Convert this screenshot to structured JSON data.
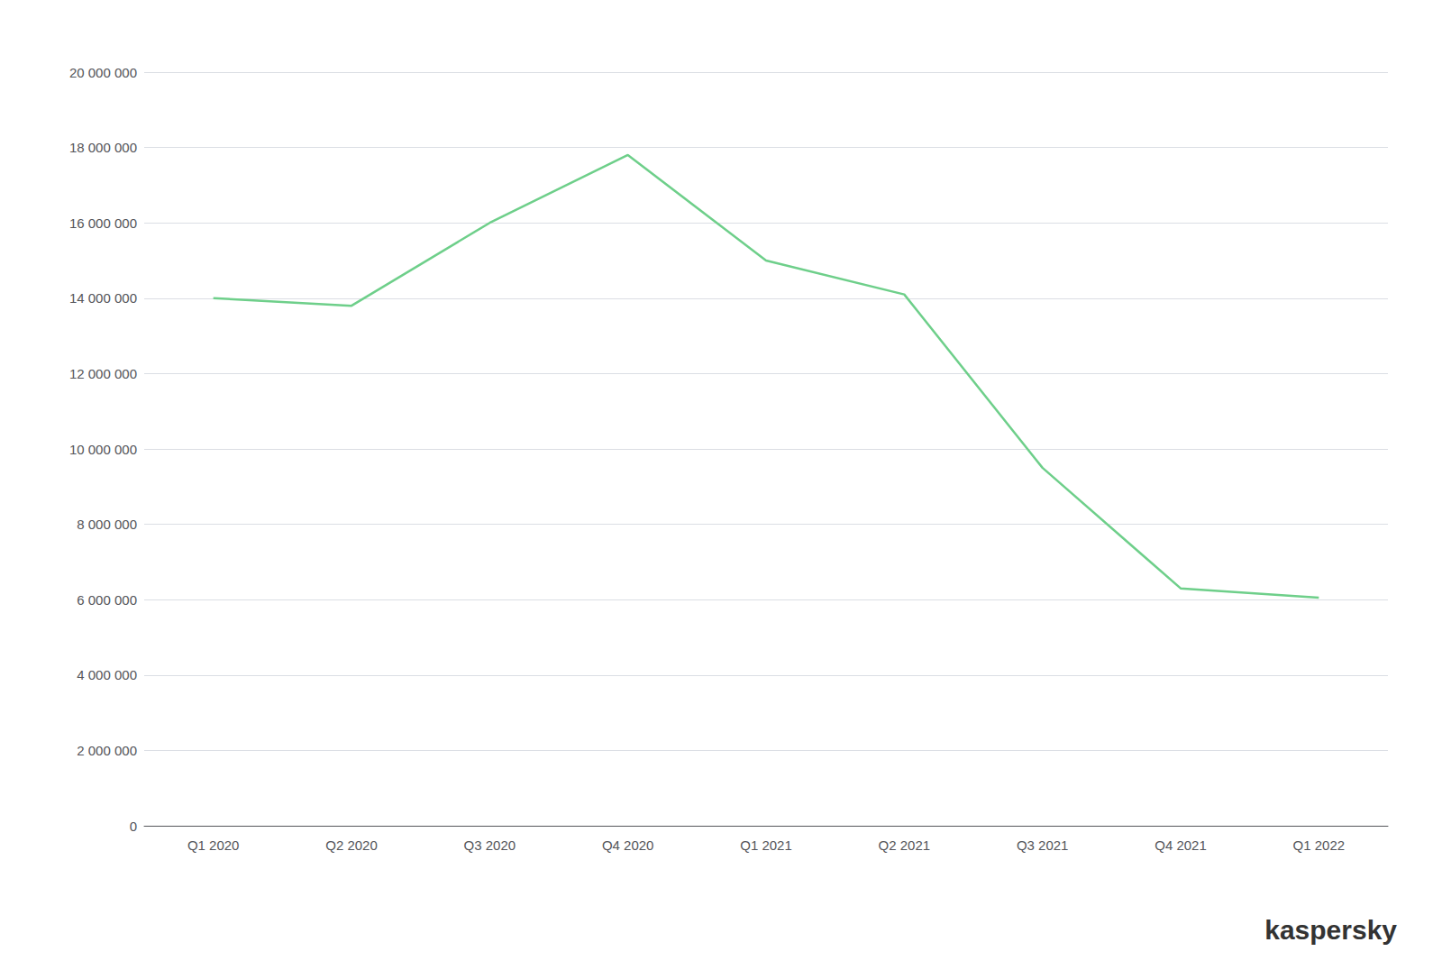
{
  "chart_data": {
    "type": "line",
    "categories": [
      "Q1 2020",
      "Q2 2020",
      "Q3 2020",
      "Q4 2020",
      "Q1 2021",
      "Q2 2021",
      "Q3 2021",
      "Q4 2021",
      "Q1 2022"
    ],
    "values": [
      14000000,
      13800000,
      16000000,
      17800000,
      15000000,
      14100000,
      9500000,
      6300000,
      6050000
    ],
    "color": "#6ecf8a",
    "ylim": [
      0,
      20000000
    ],
    "yticks": [
      0,
      {
        "value": 2000000,
        "label": "2 000 000"
      },
      {
        "value": 4000000,
        "label": "4 000 000"
      },
      {
        "value": 6000000,
        "label": "6 000 000"
      },
      {
        "value": 8000000,
        "label": "8 000 000"
      },
      {
        "value": 10000000,
        "label": "10 000 000"
      },
      {
        "value": 12000000,
        "label": "12 000 000"
      },
      {
        "value": 14000000,
        "label": "14 000 000"
      },
      {
        "value": 16000000,
        "label": "16 000 000"
      },
      {
        "value": 18000000,
        "label": "18 000 000"
      },
      {
        "value": 20000000,
        "label": "20 000 000"
      }
    ],
    "grid": true,
    "annotation": "kaspersky"
  }
}
